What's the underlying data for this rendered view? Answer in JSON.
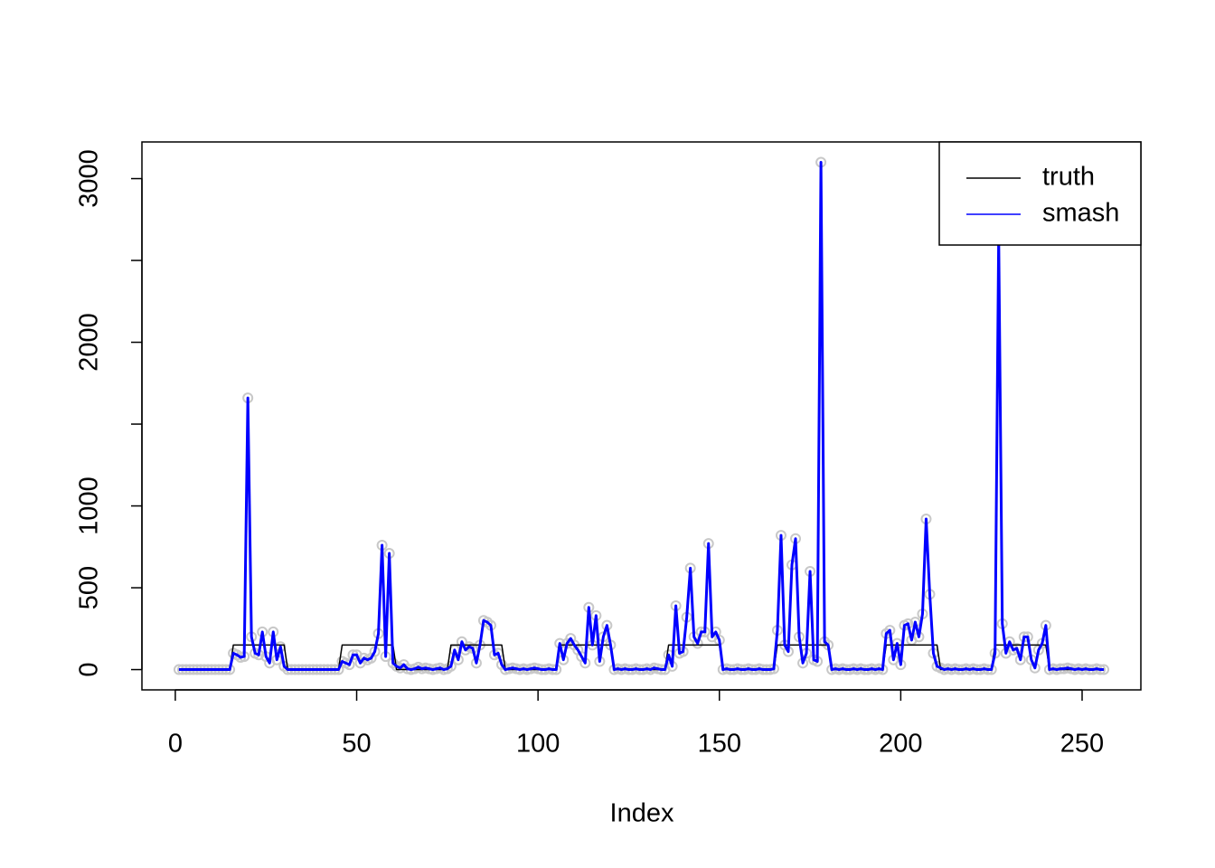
{
  "chart_data": {
    "type": "line",
    "xlabel": "Index",
    "x": [
      1,
      2,
      3,
      4,
      5,
      6,
      7,
      8,
      9,
      10,
      11,
      12,
      13,
      14,
      15,
      16,
      17,
      18,
      19,
      20,
      21,
      22,
      23,
      24,
      25,
      26,
      27,
      28,
      29,
      30,
      31,
      32,
      33,
      34,
      35,
      36,
      37,
      38,
      39,
      40,
      41,
      42,
      43,
      44,
      45,
      46,
      47,
      48,
      49,
      50,
      51,
      52,
      53,
      54,
      55,
      56,
      57,
      58,
      59,
      60,
      61,
      62,
      63,
      64,
      65,
      66,
      67,
      68,
      69,
      70,
      71,
      72,
      73,
      74,
      75,
      76,
      77,
      78,
      79,
      80,
      81,
      82,
      83,
      84,
      85,
      86,
      87,
      88,
      89,
      90,
      91,
      92,
      93,
      94,
      95,
      96,
      97,
      98,
      99,
      100,
      101,
      102,
      103,
      104,
      105,
      106,
      107,
      108,
      109,
      110,
      111,
      112,
      113,
      114,
      115,
      116,
      117,
      118,
      119,
      120,
      121,
      122,
      123,
      124,
      125,
      126,
      127,
      128,
      129,
      130,
      131,
      132,
      133,
      134,
      135,
      136,
      137,
      138,
      139,
      140,
      141,
      142,
      143,
      144,
      145,
      146,
      147,
      148,
      149,
      150,
      151,
      152,
      153,
      154,
      155,
      156,
      157,
      158,
      159,
      160,
      161,
      162,
      163,
      164,
      165,
      166,
      167,
      168,
      169,
      170,
      171,
      172,
      173,
      174,
      175,
      176,
      177,
      178,
      179,
      180,
      181,
      182,
      183,
      184,
      185,
      186,
      187,
      188,
      189,
      190,
      191,
      192,
      193,
      194,
      195,
      196,
      197,
      198,
      199,
      200,
      201,
      202,
      203,
      204,
      205,
      206,
      207,
      208,
      209,
      210,
      211,
      212,
      213,
      214,
      215,
      216,
      217,
      218,
      219,
      220,
      221,
      222,
      223,
      224,
      225,
      226,
      227,
      228,
      229,
      230,
      231,
      232,
      233,
      234,
      235,
      236,
      237,
      238,
      239,
      240,
      241,
      242,
      243,
      244,
      245,
      246,
      247,
      248,
      249,
      250,
      251,
      252,
      253,
      254,
      255,
      256
    ],
    "observations": {
      "color": "#c8c8c8",
      "values": [
        0,
        0,
        0,
        0,
        0,
        0,
        0,
        0,
        0,
        0,
        0,
        0,
        0,
        0,
        0,
        100,
        90,
        75,
        80,
        1660,
        200,
        100,
        90,
        230,
        80,
        40,
        230,
        60,
        140,
        20,
        0,
        0,
        0,
        0,
        0,
        0,
        0,
        0,
        0,
        0,
        0,
        0,
        0,
        0,
        0,
        50,
        40,
        30,
        90,
        90,
        40,
        70,
        60,
        70,
        110,
        220,
        760,
        80,
        710,
        40,
        20,
        10,
        30,
        5,
        0,
        5,
        15,
        5,
        10,
        5,
        0,
        5,
        10,
        0,
        5,
        20,
        120,
        60,
        170,
        120,
        140,
        130,
        40,
        150,
        300,
        290,
        270,
        90,
        100,
        30,
        0,
        5,
        10,
        5,
        0,
        5,
        0,
        5,
        10,
        5,
        0,
        0,
        5,
        0,
        0,
        160,
        60,
        160,
        190,
        150,
        120,
        80,
        40,
        380,
        150,
        330,
        50,
        200,
        270,
        150,
        0,
        5,
        0,
        5,
        0,
        0,
        5,
        0,
        0,
        5,
        0,
        10,
        5,
        0,
        0,
        90,
        20,
        390,
        100,
        110,
        320,
        620,
        200,
        160,
        230,
        230,
        770,
        200,
        230,
        180,
        0,
        5,
        0,
        0,
        5,
        0,
        0,
        5,
        0,
        0,
        5,
        0,
        0,
        0,
        5,
        240,
        820,
        150,
        110,
        640,
        800,
        200,
        40,
        100,
        600,
        60,
        50,
        3100,
        170,
        150,
        0,
        5,
        0,
        5,
        0,
        0,
        5,
        0,
        5,
        0,
        0,
        5,
        0,
        5,
        0,
        220,
        240,
        60,
        160,
        30,
        270,
        280,
        180,
        290,
        200,
        340,
        920,
        460,
        100,
        20,
        10,
        0,
        5,
        0,
        5,
        0,
        0,
        5,
        0,
        5,
        0,
        0,
        5,
        0,
        0,
        100,
        2650,
        280,
        100,
        170,
        120,
        130,
        60,
        200,
        200,
        60,
        10,
        120,
        160,
        270,
        0,
        5,
        0,
        5,
        5,
        10,
        5,
        0,
        5,
        0,
        5,
        0,
        0,
        5,
        0,
        0
      ]
    },
    "series": [
      {
        "name": "truth",
        "color": "#000000",
        "width": 1.5,
        "values": [
          0,
          0,
          0,
          0,
          0,
          0,
          0,
          0,
          0,
          0,
          0,
          0,
          0,
          0,
          0,
          150,
          150,
          150,
          150,
          150,
          150,
          150,
          150,
          150,
          150,
          150,
          150,
          150,
          150,
          150,
          0,
          0,
          0,
          0,
          0,
          0,
          0,
          0,
          0,
          0,
          0,
          0,
          0,
          0,
          0,
          150,
          150,
          150,
          150,
          150,
          150,
          150,
          150,
          150,
          150,
          150,
          150,
          150,
          150,
          150,
          0,
          0,
          0,
          0,
          0,
          0,
          0,
          0,
          0,
          0,
          0,
          0,
          0,
          0,
          0,
          150,
          150,
          150,
          150,
          150,
          150,
          150,
          150,
          150,
          150,
          150,
          150,
          150,
          150,
          150,
          0,
          0,
          0,
          0,
          0,
          0,
          0,
          0,
          0,
          0,
          0,
          0,
          0,
          0,
          0,
          150,
          150,
          150,
          150,
          150,
          150,
          150,
          150,
          150,
          150,
          150,
          150,
          150,
          150,
          150,
          0,
          0,
          0,
          0,
          0,
          0,
          0,
          0,
          0,
          0,
          0,
          0,
          0,
          0,
          0,
          150,
          150,
          150,
          150,
          150,
          150,
          150,
          150,
          150,
          150,
          150,
          150,
          150,
          150,
          150,
          0,
          0,
          0,
          0,
          0,
          0,
          0,
          0,
          0,
          0,
          0,
          0,
          0,
          0,
          0,
          150,
          150,
          150,
          150,
          150,
          150,
          150,
          150,
          150,
          150,
          150,
          150,
          150,
          150,
          150,
          0,
          0,
          0,
          0,
          0,
          0,
          0,
          0,
          0,
          0,
          0,
          0,
          0,
          0,
          0,
          150,
          150,
          150,
          150,
          150,
          150,
          150,
          150,
          150,
          150,
          150,
          150,
          150,
          150,
          150,
          0,
          0,
          0,
          0,
          0,
          0,
          0,
          0,
          0,
          0,
          0,
          0,
          0,
          0,
          0,
          150,
          150,
          150,
          150,
          150,
          150,
          150,
          150,
          150,
          150,
          150,
          150,
          150,
          150,
          150,
          0,
          0,
          0,
          0,
          0,
          0,
          0,
          0,
          0,
          0,
          0,
          0,
          0,
          0,
          0,
          0
        ]
      },
      {
        "name": "smash",
        "color": "#0000ff",
        "width": 3,
        "values": [
          0,
          0,
          0,
          0,
          0,
          0,
          0,
          0,
          0,
          0,
          0,
          0,
          0,
          0,
          0,
          100,
          90,
          75,
          80,
          1660,
          200,
          100,
          90,
          230,
          80,
          40,
          230,
          60,
          140,
          20,
          0,
          0,
          0,
          0,
          0,
          0,
          0,
          0,
          0,
          0,
          0,
          0,
          0,
          0,
          0,
          50,
          40,
          30,
          90,
          90,
          40,
          70,
          60,
          70,
          110,
          220,
          760,
          80,
          710,
          40,
          20,
          10,
          30,
          5,
          0,
          5,
          15,
          5,
          10,
          5,
          0,
          5,
          10,
          0,
          5,
          20,
          120,
          60,
          170,
          120,
          140,
          130,
          40,
          150,
          300,
          290,
          270,
          90,
          100,
          30,
          0,
          5,
          10,
          5,
          0,
          5,
          0,
          5,
          10,
          5,
          0,
          0,
          5,
          0,
          0,
          160,
          60,
          160,
          190,
          150,
          120,
          80,
          40,
          380,
          150,
          330,
          50,
          200,
          270,
          150,
          0,
          5,
          0,
          5,
          0,
          0,
          5,
          0,
          0,
          5,
          0,
          10,
          5,
          0,
          0,
          90,
          20,
          390,
          100,
          110,
          320,
          620,
          200,
          160,
          230,
          230,
          770,
          200,
          230,
          180,
          0,
          5,
          0,
          0,
          5,
          0,
          0,
          5,
          0,
          0,
          5,
          0,
          0,
          0,
          5,
          240,
          820,
          150,
          110,
          640,
          800,
          200,
          40,
          100,
          600,
          60,
          50,
          3100,
          170,
          150,
          0,
          5,
          0,
          5,
          0,
          0,
          5,
          0,
          5,
          0,
          0,
          5,
          0,
          5,
          0,
          220,
          240,
          60,
          160,
          30,
          270,
          280,
          180,
          290,
          200,
          340,
          920,
          460,
          100,
          20,
          10,
          0,
          5,
          0,
          5,
          0,
          0,
          5,
          0,
          5,
          0,
          0,
          5,
          0,
          0,
          100,
          2650,
          280,
          100,
          170,
          120,
          130,
          60,
          200,
          200,
          60,
          10,
          120,
          160,
          270,
          0,
          5,
          0,
          5,
          5,
          10,
          5,
          0,
          5,
          0,
          5,
          0,
          0,
          5,
          0,
          0
        ]
      }
    ],
    "xlim": [
      -9.2,
      266.2
    ],
    "ylim": [
      -124,
      3224
    ],
    "xticks": [
      0,
      50,
      100,
      150,
      200,
      250
    ],
    "yticks": [
      0,
      500,
      1000,
      {
        "value": 1500,
        "label": null
      },
      2000,
      {
        "value": 2500,
        "label": null
      },
      3000
    ],
    "legend": "topright"
  }
}
